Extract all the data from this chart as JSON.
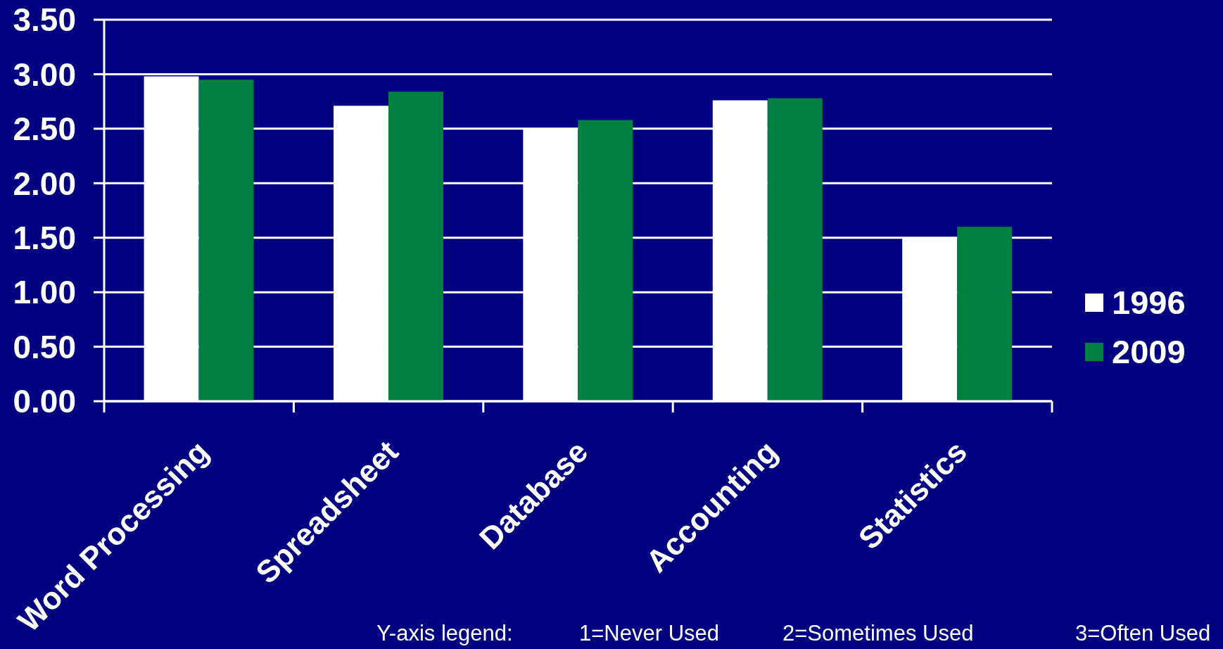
{
  "chart_data": {
    "type": "bar",
    "categories": [
      "Word Processing",
      "Spreadsheet",
      "Database",
      "Accounting",
      "Statistics"
    ],
    "series": [
      {
        "name": "1996",
        "color": "#ffffff",
        "values": [
          2.98,
          2.71,
          2.5,
          2.76,
          1.5
        ]
      },
      {
        "name": "2009",
        "color": "#008040",
        "values": [
          2.95,
          2.84,
          2.58,
          2.78,
          1.6
        ]
      }
    ],
    "ylim": [
      0,
      3.5
    ],
    "yticks": [
      {
        "value": 0,
        "label": "0.00"
      },
      {
        "value": 0.5,
        "label": "0.50"
      },
      {
        "value": 1,
        "label": "1.00"
      },
      {
        "value": 1.5,
        "label": "1.50"
      },
      {
        "value": 2,
        "label": "2.00"
      },
      {
        "value": 2.5,
        "label": "2.50"
      },
      {
        "value": 3,
        "label": "3.00"
      },
      {
        "value": 3.5,
        "label": "3.50"
      }
    ],
    "grid": "y",
    "legend": "right",
    "annotations": [
      "Y-axis legend:",
      "1=Never Used",
      "2=Sometimes Used",
      "3=Often Used"
    ]
  }
}
